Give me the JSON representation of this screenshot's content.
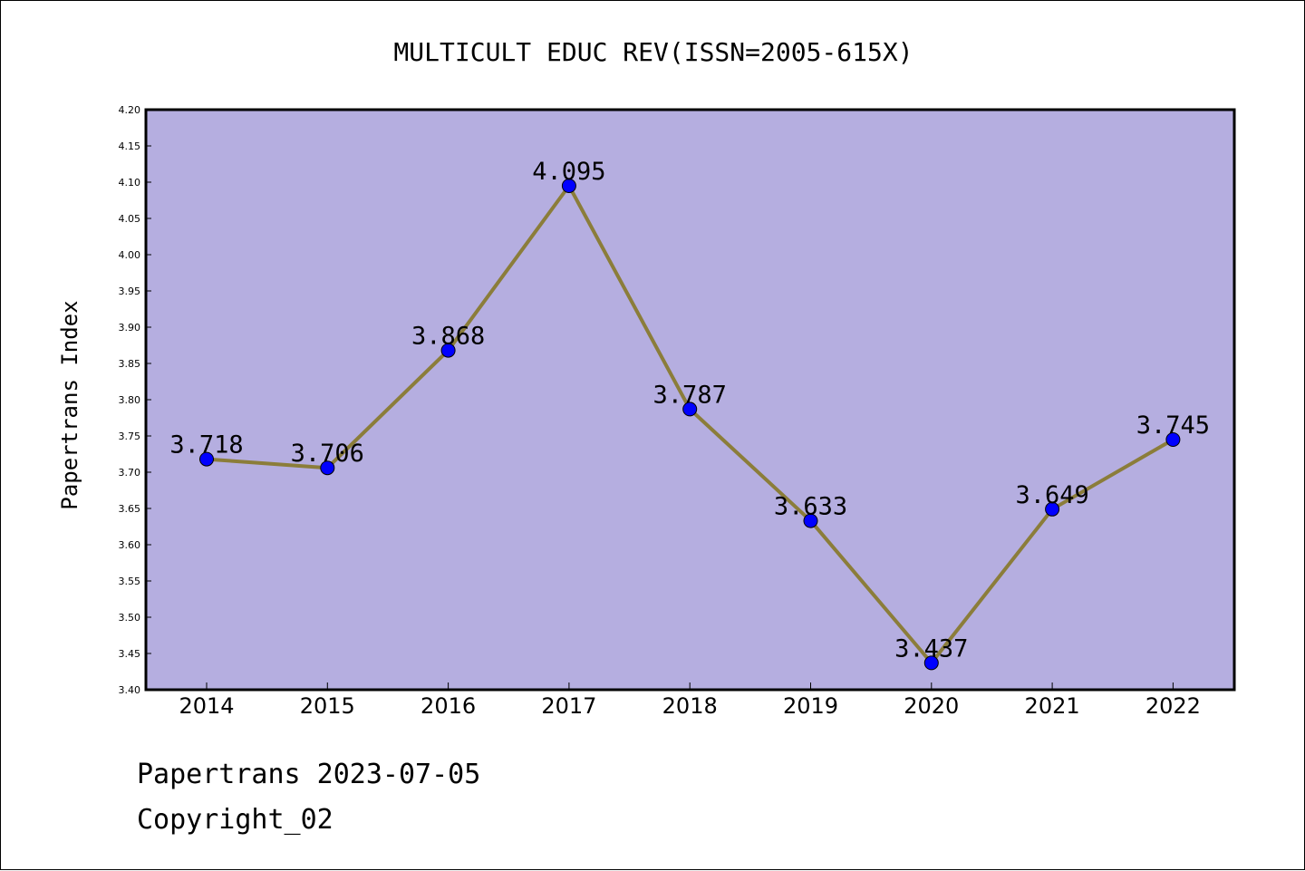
{
  "chart_data": {
    "type": "line",
    "title": "MULTICULT EDUC REV(ISSN=2005-615X)",
    "xlabel": "",
    "ylabel": "Papertrans Index",
    "categories": [
      "2014",
      "2015",
      "2016",
      "2017",
      "2018",
      "2019",
      "2020",
      "2021",
      "2022"
    ],
    "values": [
      3.718,
      3.706,
      3.868,
      4.095,
      3.787,
      3.633,
      3.437,
      3.649,
      3.745
    ],
    "data_labels": [
      "3.718",
      "3.706",
      "3.868",
      "4.095",
      "3.787",
      "3.633",
      "3.437",
      "3.649",
      "3.745"
    ],
    "ylim": [
      3.4,
      4.2
    ],
    "yticks": [
      "3.40",
      "3.45",
      "3.50",
      "3.55",
      "3.60",
      "3.65",
      "3.70",
      "3.75",
      "3.80",
      "3.85",
      "3.90",
      "3.95",
      "4.00",
      "4.05",
      "4.10",
      "4.15",
      "4.20"
    ],
    "grid": false,
    "colors": {
      "plot_background": "#b5aee0",
      "line": "#8b7d3a",
      "marker": "#0000ff"
    }
  },
  "footer": {
    "line1": "Papertrans 2023-07-05",
    "line2": "Copyright_02"
  }
}
